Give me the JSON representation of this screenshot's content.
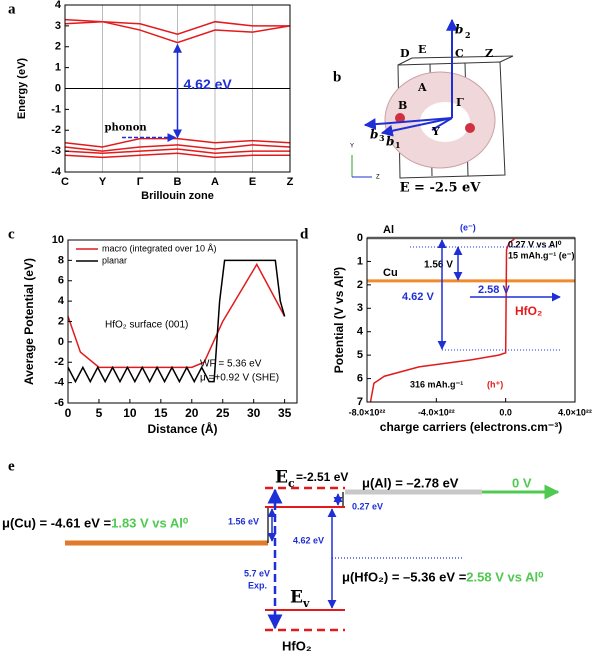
{
  "chart_data": [
    {
      "type": "line",
      "panel_label": "a",
      "ylabel": "Energy (eV)",
      "xlabel": "Brillouin zone",
      "categories": [
        "C",
        "Y",
        "Γ",
        "B",
        "A",
        "E",
        "Z"
      ],
      "ylim": [
        -4,
        4
      ],
      "yticks": [
        -4,
        -3,
        -2,
        -1,
        0,
        1,
        2,
        3,
        4
      ],
      "series": [
        {
          "color": "#e31a1c",
          "values": [
            3.1,
            3.2,
            2.8,
            2.2,
            2.8,
            2.7,
            3.0
          ]
        },
        {
          "color": "#e31a1c",
          "values": [
            3.3,
            3.2,
            3.1,
            2.6,
            3.2,
            3.0,
            3.0
          ]
        },
        {
          "color": "#e31a1c",
          "values": [
            -2.6,
            -2.8,
            -2.4,
            -2.4,
            -2.6,
            -2.5,
            -2.6
          ]
        },
        {
          "color": "#e31a1c",
          "values": [
            -2.8,
            -3.0,
            -2.8,
            -2.7,
            -2.9,
            -2.7,
            -2.8
          ]
        },
        {
          "color": "#e31a1c",
          "values": [
            -3.0,
            -3.1,
            -3.0,
            -2.9,
            -3.1,
            -3.0,
            -3.0
          ]
        },
        {
          "color": "#e31a1c",
          "values": [
            -3.2,
            -3.3,
            -3.2,
            -3.1,
            -3.3,
            -3.2,
            -3.2
          ]
        }
      ],
      "annotations": {
        "gap": "4.62 eV",
        "phonon": "phonon"
      }
    },
    {
      "type": "line",
      "panel_label": "c",
      "ylabel": "Average Potential (eV)",
      "xlabel": "Distance (Å)",
      "xlim": [
        0,
        37
      ],
      "xticks": [
        0,
        5,
        10,
        15,
        20,
        25,
        30,
        35
      ],
      "ylim": [
        -6,
        10
      ],
      "yticks": [
        -6,
        -4,
        -2,
        0,
        2,
        4,
        6,
        8,
        10
      ],
      "legend": "upper left",
      "series": [
        {
          "name": "macro (integrated over 10 Å)",
          "color": "#e31a1c",
          "x": [
            0,
            2,
            5,
            10,
            15,
            20,
            22,
            25,
            30.5,
            35
          ],
          "values": [
            2.5,
            -1,
            -2.5,
            -2.5,
            -2.5,
            -2.5,
            -2,
            2,
            7.6,
            2.5
          ]
        },
        {
          "name": "planar",
          "color": "#000000",
          "x": [
            0,
            1.2,
            2.4,
            3.6,
            4.8,
            6,
            7.2,
            8.4,
            9.6,
            10.8,
            12,
            13.2,
            14.4,
            15.6,
            16.8,
            18,
            19.2,
            20.4,
            21.6,
            22.8,
            23.6,
            24.5,
            25.3,
            33.5,
            34.3,
            35
          ],
          "values": [
            -2.5,
            -3.9,
            -2.5,
            -3.9,
            -2.5,
            -3.9,
            -2.5,
            -3.9,
            -2.5,
            -3.9,
            -2.5,
            -3.9,
            -2.5,
            -3.9,
            -2.5,
            -3.9,
            -2.5,
            -3.9,
            -2.5,
            -3.9,
            -3.9,
            4,
            8,
            8,
            4,
            2.5
          ]
        }
      ],
      "annotations": {
        "surface": "HfO₂ surface (001)",
        "wf": "WF = 5.36 eV",
        "mu": "μ =+0.92 V (SHE)"
      }
    },
    {
      "type": "line",
      "panel_label": "d",
      "ylabel": "Potential (V vs Al⁰)",
      "xlabel": "charge carriers (electrons.cm⁻³)",
      "xlim": [
        -8e+22,
        4e+22
      ],
      "xticks": [
        {
          "value": -8e+22,
          "label": "-8.0×10²²"
        },
        {
          "value": -4e+22,
          "label": "-4.0×10²²"
        },
        {
          "value": 0,
          "label": "0.0"
        },
        {
          "value": 4e+22,
          "label": "4.0×10²²"
        }
      ],
      "ylim": [
        0,
        7
      ],
      "yticks": [
        0,
        1,
        2,
        3,
        4,
        5,
        6,
        7
      ],
      "y_inverted": true,
      "series": [
        {
          "name": "HfO₂",
          "color": "#e31a1c",
          "x": [
            -7.8e+22,
            -7.6e+22,
            -7e+22,
            -5e+22,
            -2e+22,
            -4e+21,
            0,
            5e+20,
            2e+21,
            5e+21
          ],
          "values": [
            7,
            6.2,
            5.9,
            5.5,
            5.2,
            5.0,
            4.9,
            0.5,
            0.2,
            0.05
          ]
        }
      ],
      "reference_lines": [
        {
          "name": "Al",
          "value": 0,
          "color": "#b0b0b0"
        },
        {
          "name": "Cu",
          "value": 1.83,
          "color": "#f08a2c"
        }
      ],
      "annotations": {
        "e": "(e⁻)",
        "v027": "0.27 V vs Al⁰",
        "cap_e": "15 mAh.g⁻¹ (e⁻)",
        "v156": "1.56 V",
        "v462": "4.62 V",
        "v258": "2.58 V",
        "cap_h": "316 mAh.g⁻¹",
        "h": "(h⁺)"
      }
    }
  ],
  "panel_b": {
    "label": "b",
    "points": [
      "D",
      "E",
      "C",
      "Z",
      "A",
      "B",
      "Γ",
      "Y"
    ],
    "vectors": [
      "b",
      "2",
      "b",
      "3",
      "b",
      "1"
    ],
    "energy": "E = -2.5 eV"
  },
  "panel_e": {
    "label": "e",
    "mu_cu": "μ(Cu) = -4.61 eV = ",
    "mu_cu_v": "1.83 V vs Al⁰",
    "mu_al": "μ(Al) = –2.78 eV",
    "mu_al_v": "0 V",
    "ec_sym": "E",
    "ec_sub": "c",
    "ec_val": "=-2.51 eV",
    "d156": "1.56 eV",
    "d027": "0.27 eV",
    "d462": "4.62 eV",
    "mu_hf": "μ(HfO₂) = –5.36 eV = ",
    "mu_hf_v": "2.58 V vs Al⁰",
    "gap_exp": "5.7 eV",
    "exp": "Exp.",
    "ev_sym": "E",
    "ev_sub": "v",
    "material": "HfO₂"
  }
}
